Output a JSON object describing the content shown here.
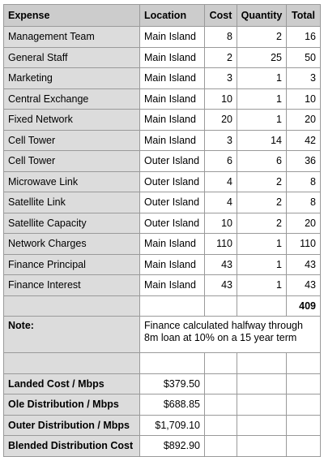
{
  "headers": {
    "expense": "Expense",
    "location": "Location",
    "cost": "Cost",
    "quantity": "Quantity",
    "total": "Total"
  },
  "rows": [
    {
      "expense": "Management Team",
      "location": "Main Island",
      "cost": "8",
      "quantity": "2",
      "total": "16"
    },
    {
      "expense": "General Staff",
      "location": "Main Island",
      "cost": "2",
      "quantity": "25",
      "total": "50"
    },
    {
      "expense": "Marketing",
      "location": "Main Island",
      "cost": "3",
      "quantity": "1",
      "total": "3"
    },
    {
      "expense": "Central Exchange",
      "location": "Main Island",
      "cost": "10",
      "quantity": "1",
      "total": "10"
    },
    {
      "expense": "Fixed Network",
      "location": "Main Island",
      "cost": "20",
      "quantity": "1",
      "total": "20"
    },
    {
      "expense": "Cell Tower",
      "location": "Main Island",
      "cost": "3",
      "quantity": "14",
      "total": "42"
    },
    {
      "expense": "Cell Tower",
      "location": "Outer Island",
      "cost": "6",
      "quantity": "6",
      "total": "36"
    },
    {
      "expense": "Microwave Link",
      "location": "Outer Island",
      "cost": "4",
      "quantity": "2",
      "total": "8"
    },
    {
      "expense": "Satellite Link",
      "location": "Outer Island",
      "cost": "4",
      "quantity": "2",
      "total": "8"
    },
    {
      "expense": "Satellite Capacity",
      "location": "Outer Island",
      "cost": "10",
      "quantity": "2",
      "total": "20"
    },
    {
      "expense": "Network Charges",
      "location": "Main Island",
      "cost": "110",
      "quantity": "1",
      "total": "110"
    },
    {
      "expense": "Finance Principal",
      "location": "Main Island",
      "cost": "43",
      "quantity": "1",
      "total": "43"
    },
    {
      "expense": "Finance Interest",
      "location": "Main Island",
      "cost": "43",
      "quantity": "1",
      "total": "43"
    }
  ],
  "grand_total": "409",
  "note": {
    "label": "Note:",
    "text": "Finance calculated halfway through 8m loan at 10% on a 15 year term"
  },
  "summary": [
    {
      "label": "Landed Cost / Mbps",
      "value": "$379.50"
    },
    {
      "label": "Ole Distribution / Mbps",
      "value": "$688.85"
    },
    {
      "label": "Outer Distribution / Mbps",
      "value": "$1,709.10"
    },
    {
      "label": "Blended Distribution Cost",
      "value": "$892.90"
    }
  ]
}
